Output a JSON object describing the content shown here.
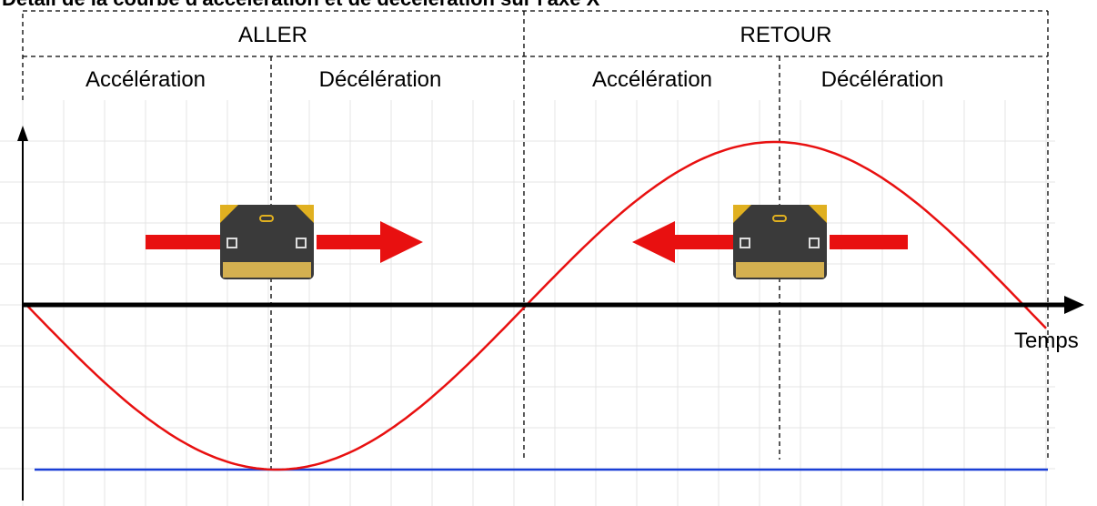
{
  "title": "Détail de la courbe d'accélération et de décélération sur l'axe X",
  "phases": [
    {
      "label": "ALLER",
      "steps": [
        "Accélération",
        "Décélération"
      ]
    },
    {
      "label": "RETOUR",
      "steps": [
        "Accélération",
        "Décélération"
      ]
    }
  ],
  "axis_label": "Temps"
}
